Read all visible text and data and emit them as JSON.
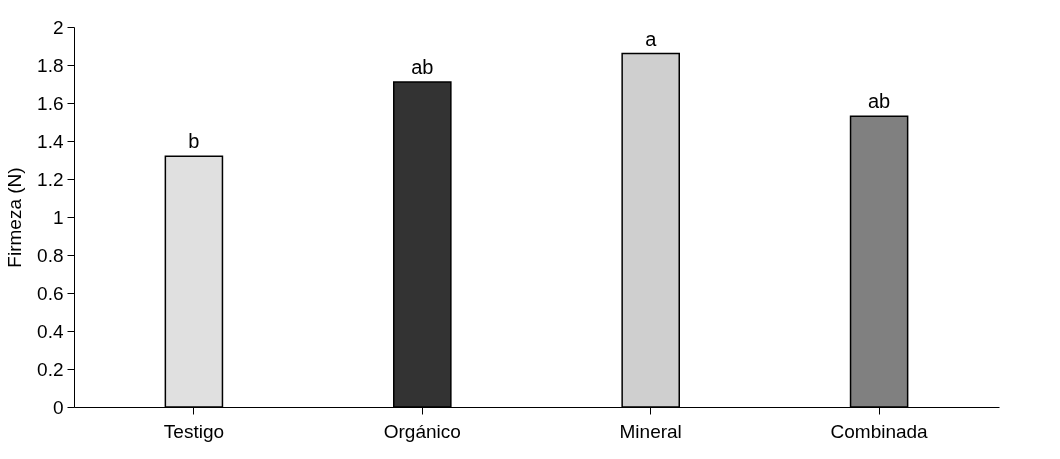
{
  "chart_data": {
    "type": "bar",
    "ylabel": "Firmeza (N)",
    "categories": [
      "Testigo",
      "Orgánico",
      "Mineral",
      "Combinada"
    ],
    "values": [
      1.32,
      1.71,
      1.86,
      1.53
    ],
    "colors": [
      "#e0e0e0",
      "#333333",
      "#cfcfcf",
      "#808080"
    ],
    "ylim": [
      0,
      2
    ],
    "yticks": [
      0,
      0.2,
      0.4,
      0.6,
      0.8,
      1,
      1.2,
      1.4,
      1.6,
      1.8,
      2
    ],
    "grid": false,
    "annotations": [
      {
        "text": "b",
        "x": "Testigo",
        "y": 1.32
      },
      {
        "text": "ab",
        "x": "Orgánico",
        "y": 1.71
      },
      {
        "text": "a",
        "x": "Mineral",
        "y": 1.86
      },
      {
        "text": "ab",
        "x": "Combinada",
        "y": 1.53
      }
    ]
  }
}
